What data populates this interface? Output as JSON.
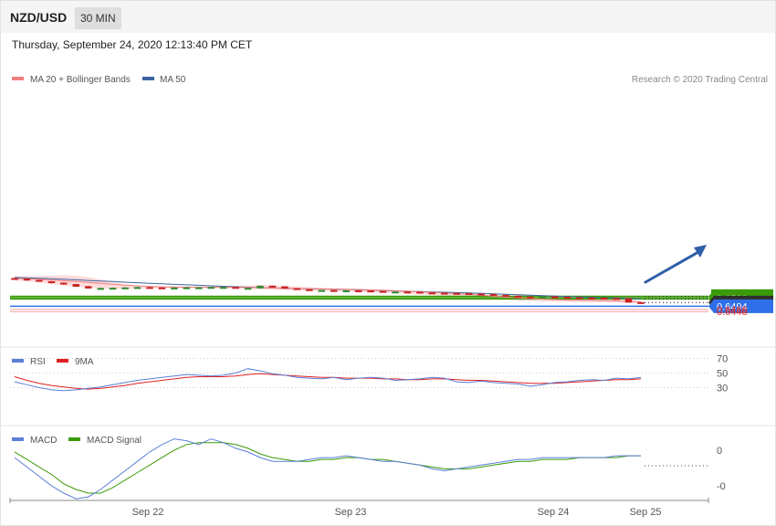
{
  "header": {
    "symbol": "NZD/USD",
    "timeframe": "30 MIN"
  },
  "datetime": "Thursday, September 24, 2020 12:13:40 PM CET",
  "legend": {
    "ma20": "MA 20 + Bollinger Bands",
    "ma50": "MA 50",
    "credit": "Research © 2020 Trading Central",
    "rsi": "RSI",
    "rsi_ma": "9MA",
    "macd": "MACD",
    "macd_signal": "MACD Signal"
  },
  "colors": {
    "ma20": "#f08080",
    "ma50": "#3c64a0",
    "band_fill": "#ffd6d6",
    "candle_up": "#2e8b2e",
    "candle_down": "#cc2222",
    "resistance": "#3a9a08",
    "pivot": "#2f2f2f",
    "support1": "#2f6fe8",
    "support2": "#e03030",
    "arrow": "#2f5fa8",
    "rsi": "#5b7fd6",
    "rsi_ma": "#e02020",
    "macd": "#5b7fd6",
    "macd_signal": "#3a9a08"
  },
  "levels": [
    {
      "value": "0.6578",
      "kind": "resistance"
    },
    {
      "value": "0.6560",
      "kind": "resistance"
    },
    {
      "value": "0.6526",
      "kind": "last"
    },
    {
      "value": "0.6494",
      "kind": "support1"
    },
    {
      "value": "0.6466",
      "kind": "support2"
    },
    {
      "value": "0.6448",
      "kind": "support2"
    }
  ],
  "xaxis_labels": [
    "Sep 22",
    "Sep 23",
    "Sep 24",
    "Sep 25"
  ],
  "rsi_ticks": [
    "70",
    "50",
    "30"
  ],
  "macd_ticks": [
    "0",
    "-0"
  ],
  "chart_data": [
    {
      "type": "candlestick",
      "title": "NZD/USD",
      "x_ticks": [
        "Sep 22",
        "Sep 23",
        "Sep 24",
        "Sep 25"
      ],
      "ylim": [
        0.644,
        0.679
      ],
      "ma20": [
        0.6736,
        0.6733,
        0.6729,
        0.6723,
        0.6716,
        0.6709,
        0.6701,
        0.6693,
        0.6685,
        0.6678,
        0.6672,
        0.6667,
        0.6663,
        0.6661,
        0.666,
        0.6659,
        0.6659,
        0.6659,
        0.6659,
        0.6658,
        0.6656,
        0.6653,
        0.665,
        0.6648,
        0.6646,
        0.6645,
        0.6643,
        0.6641,
        0.6639,
        0.6636,
        0.6633,
        0.6629,
        0.6625,
        0.662,
        0.6615,
        0.661,
        0.6604,
        0.6598,
        0.659,
        0.6582,
        0.6574,
        0.6567,
        0.6561,
        0.6556,
        0.6552,
        0.6549,
        0.6547,
        0.6545,
        0.6543,
        0.654,
        0.6536,
        0.6532
      ],
      "ma50": [
        0.6744,
        0.6741,
        0.6737,
        0.6733,
        0.6729,
        0.6724,
        0.6719,
        0.6714,
        0.6709,
        0.6704,
        0.6699,
        0.6694,
        0.669,
        0.6685,
        0.6681,
        0.6677,
        0.6672,
        0.6668,
        0.6664,
        0.666,
        0.6657,
        0.6654,
        0.6651,
        0.6648,
        0.6646,
        0.6644,
        0.6642,
        0.664,
        0.6637,
        0.6634,
        0.6631,
        0.6628,
        0.6625,
        0.6622,
        0.6619,
        0.6616,
        0.6613,
        0.661,
        0.6606,
        0.6602,
        0.6598,
        0.6594,
        0.659,
        0.6586,
        0.6582,
        0.6578,
        0.6575,
        0.6572,
        0.6569,
        0.6566,
        0.6563,
        0.656
      ],
      "band_upper": [
        0.6755,
        0.6756,
        0.6758,
        0.6762,
        0.6764,
        0.676,
        0.6748,
        0.6728,
        0.6705,
        0.6686,
        0.6674,
        0.6669,
        0.6667,
        0.6667,
        0.6667,
        0.6666,
        0.6666,
        0.6667,
        0.6671,
        0.6676,
        0.668,
        0.6678,
        0.6673,
        0.6666,
        0.666,
        0.6655,
        0.6652,
        0.665,
        0.6647,
        0.6643,
        0.6639,
        0.6634,
        0.663,
        0.6625,
        0.662,
        0.6615,
        0.661,
        0.6606,
        0.6601,
        0.6595,
        0.6588,
        0.658,
        0.6572,
        0.6566,
        0.6562,
        0.656,
        0.6557,
        0.6555,
        0.6552,
        0.655,
        0.6546,
        0.654
      ],
      "band_lower": [
        0.6718,
        0.671,
        0.67,
        0.6688,
        0.6675,
        0.6665,
        0.6656,
        0.665,
        0.6646,
        0.6645,
        0.6646,
        0.6648,
        0.6651,
        0.6653,
        0.6653,
        0.6652,
        0.6651,
        0.665,
        0.6648,
        0.6645,
        0.6641,
        0.6637,
        0.6633,
        0.663,
        0.6628,
        0.6627,
        0.6625,
        0.6622,
        0.6618,
        0.6614,
        0.661,
        0.6606,
        0.6601,
        0.6597,
        0.6592,
        0.6587,
        0.6582,
        0.6577,
        0.657,
        0.6562,
        0.6553,
        0.6545,
        0.654,
        0.6536,
        0.6533,
        0.6531,
        0.653,
        0.6529,
        0.6528,
        0.6527,
        0.6525,
        0.6523
      ],
      "close": [
        0.6732,
        0.6722,
        0.671,
        0.6697,
        0.6685,
        0.6667,
        0.6651,
        0.6651,
        0.6653,
        0.6656,
        0.6659,
        0.6656,
        0.6654,
        0.6655,
        0.6657,
        0.6657,
        0.666,
        0.666,
        0.6652,
        0.6652,
        0.6671,
        0.6665,
        0.665,
        0.664,
        0.6633,
        0.6633,
        0.6631,
        0.6631,
        0.6629,
        0.6625,
        0.6619,
        0.662,
        0.6619,
        0.6612,
        0.661,
        0.6608,
        0.6606,
        0.6602,
        0.66,
        0.6592,
        0.6584,
        0.6577,
        0.6575,
        0.6578,
        0.6575,
        0.6571,
        0.6568,
        0.6566,
        0.6564,
        0.6562,
        0.6528,
        0.6526
      ],
      "last_price": 0.6526,
      "levels": [
        0.6578,
        0.656,
        0.6526,
        0.6494,
        0.6466,
        0.6448
      ]
    },
    {
      "type": "line",
      "title": "RSI",
      "ylim": [
        0,
        100
      ],
      "y_ticks": [
        70,
        50,
        30
      ],
      "series": [
        {
          "name": "RSI",
          "values": [
            38,
            34,
            30,
            27,
            26,
            27,
            29,
            31,
            34,
            37,
            40,
            42,
            44,
            46,
            48,
            47,
            46,
            47,
            50,
            56,
            53,
            49,
            47,
            44,
            43,
            42,
            44,
            41,
            43,
            44,
            43,
            40,
            41,
            42,
            44,
            43,
            38,
            37,
            39,
            37,
            36,
            35,
            32,
            34,
            37,
            38,
            40,
            41,
            40,
            43,
            42,
            44
          ]
        },
        {
          "name": "9MA",
          "values": [
            45,
            40,
            36,
            33,
            31,
            29,
            28,
            29,
            31,
            33,
            36,
            38,
            40,
            42,
            44,
            45,
            45,
            45,
            46,
            48,
            49,
            48,
            47,
            46,
            45,
            44,
            44,
            43,
            43,
            43,
            42,
            42,
            41,
            41,
            42,
            42,
            41,
            40,
            40,
            39,
            38,
            37,
            36,
            36,
            36,
            37,
            38,
            39,
            40,
            41,
            41,
            42
          ]
        }
      ]
    },
    {
      "type": "line",
      "title": "MACD",
      "y_ticks": [
        "0",
        "-0"
      ],
      "series": [
        {
          "name": "MACD",
          "values": [
            -0.0002,
            -0.0007,
            -0.0012,
            -0.0017,
            -0.0021,
            -0.0024,
            -0.0023,
            -0.0019,
            -0.0014,
            -0.0009,
            -0.0004,
            0.0001,
            0.0005,
            0.0008,
            0.0007,
            0.0005,
            0.0008,
            0.0006,
            0.0003,
            0.0001,
            -0.0002,
            -0.0004,
            -0.0004,
            -0.0004,
            -0.0003,
            -0.0002,
            -0.0002,
            -0.0001,
            -0.0002,
            -0.0003,
            -0.0004,
            -0.0004,
            -0.0005,
            -0.0006,
            -0.0008,
            -0.0009,
            -0.0008,
            -0.0007,
            -0.0006,
            -0.0005,
            -0.0004,
            -0.0003,
            -0.0003,
            -0.0002,
            -0.0002,
            -0.0002,
            -0.0002,
            -0.0002,
            -0.0002,
            -0.0001,
            -0.0001,
            -0.0001
          ]
        },
        {
          "name": "MACD Signal",
          "values": [
            0.0001,
            -0.0003,
            -0.0007,
            -0.0011,
            -0.0016,
            -0.0019,
            -0.0021,
            -0.0021,
            -0.0018,
            -0.0014,
            -0.001,
            -0.0006,
            -0.0002,
            0.0002,
            0.0005,
            0.0006,
            0.0006,
            0.0006,
            0.0005,
            0.0003,
            0.0,
            -0.0002,
            -0.0003,
            -0.0004,
            -0.0004,
            -0.0003,
            -0.0003,
            -0.0002,
            -0.0002,
            -0.0003,
            -0.0003,
            -0.0004,
            -0.0005,
            -0.0006,
            -0.0007,
            -0.0008,
            -0.0008,
            -0.0008,
            -0.0007,
            -0.0006,
            -0.0005,
            -0.0004,
            -0.0004,
            -0.0003,
            -0.0003,
            -0.0003,
            -0.0002,
            -0.0002,
            -0.0002,
            -0.0002,
            -0.0001,
            -0.0001
          ]
        }
      ]
    }
  ]
}
